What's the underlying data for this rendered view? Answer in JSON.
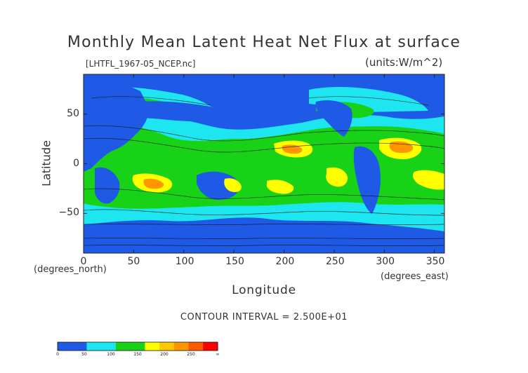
{
  "title": "Monthly Mean Latent Heat Net Flux at surface",
  "file_label": "[LHTFL_1967-05_NCEP.nc]",
  "units_label": "(units:W/m^2)",
  "axes": {
    "x_title": "Longitude",
    "x_unit": "(degrees_east)",
    "y_title": "Latitude",
    "y_unit": "(degrees_north)",
    "x_range": [
      0,
      360
    ],
    "y_range": [
      -90,
      90
    ],
    "x_ticks": [
      "0",
      "50",
      "100",
      "150",
      "200",
      "250",
      "300",
      "350"
    ],
    "x_tick_values": [
      0,
      50,
      100,
      150,
      200,
      250,
      300,
      350
    ],
    "y_ticks": [
      "50",
      "0",
      "−50"
    ],
    "y_tick_values": [
      50,
      0,
      -50
    ]
  },
  "contour_label": "CONTOUR INTERVAL = 2.500E+01",
  "colorbar": {
    "labels": [
      "0",
      "50",
      "100",
      "150",
      "200",
      "250",
      "∞"
    ],
    "colors": [
      "#1e5ae6",
      "#1e5ae6",
      "#1ee6f0",
      "#1ee6f0",
      "#18d218",
      "#18d218",
      "#ffff00",
      "#ffc800",
      "#ff9600",
      "#ff5a00",
      "#ff0000"
    ]
  },
  "palette": {
    "level_0": "#1e5ae6",
    "level_1": "#1ee6f0",
    "level_2": "#18d218",
    "level_3": "#ffff00",
    "level_4": "#ff9600"
  }
}
